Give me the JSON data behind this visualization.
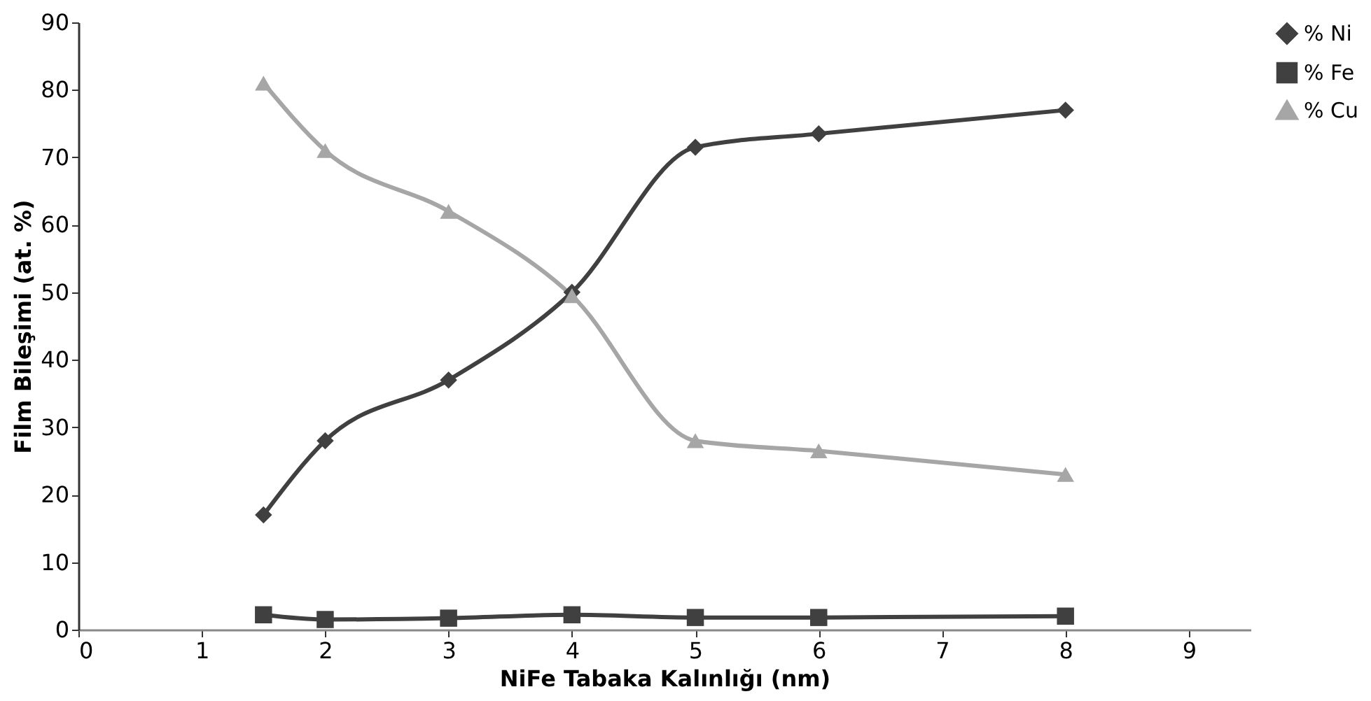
{
  "chart_data": {
    "type": "line",
    "xlabel": "NiFe Tabaka Kalınlığı (nm)",
    "ylabel": "Film Bileşimi (at. %)",
    "x": [
      1.5,
      2,
      3,
      4,
      5,
      6,
      8
    ],
    "series": [
      {
        "name": "% Ni",
        "color": "#404040",
        "marker": "diamond",
        "values": [
          17,
          28,
          37,
          50,
          71.5,
          73.5,
          77
        ]
      },
      {
        "name": "% Fe",
        "color": "#404040",
        "marker": "square",
        "values": [
          2.2,
          1.5,
          1.7,
          2.2,
          1.8,
          1.8,
          2.0
        ]
      },
      {
        "name": "% Cu",
        "color": "#a6a6a6",
        "marker": "triangle",
        "values": [
          81,
          71,
          62,
          49.5,
          28,
          26.5,
          23
        ]
      }
    ],
    "xlim": [
      0,
      9.5
    ],
    "xticks": [
      0,
      1,
      2,
      3,
      4,
      5,
      6,
      7,
      8,
      9
    ],
    "ylim": [
      0,
      90
    ],
    "yticks": [
      0,
      10,
      20,
      30,
      40,
      50,
      60,
      70,
      80,
      90
    ],
    "grid": false,
    "legend": "right",
    "line_style": "solid"
  }
}
